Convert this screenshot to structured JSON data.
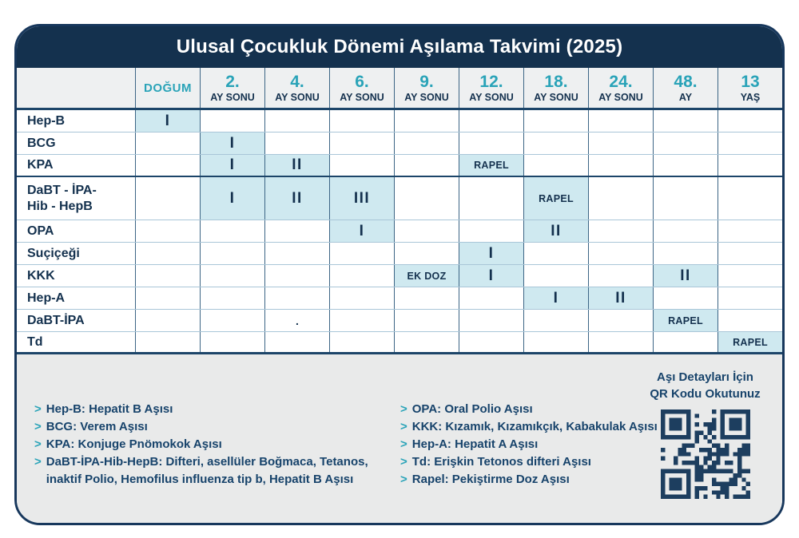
{
  "title": "Ulusal Çocukluk Dönemi Aşılama Takvimi (2025)",
  "colors": {
    "navy": "#14314e",
    "teal": "#29a3b8",
    "highlight_cell": "#cfe9f0",
    "header_bg": "#eef0f1",
    "footer_bg": "#e9eaea"
  },
  "chart_data": {
    "type": "table",
    "title": "Ulusal Çocukluk Dönemi Aşılama Takvimi (2025)",
    "columns": [
      {
        "num": "DOĞUM",
        "sub": ""
      },
      {
        "num": "2.",
        "sub": "AY SONU"
      },
      {
        "num": "4.",
        "sub": "AY SONU"
      },
      {
        "num": "6.",
        "sub": "AY SONU"
      },
      {
        "num": "9.",
        "sub": "AY SONU"
      },
      {
        "num": "12.",
        "sub": "AY SONU"
      },
      {
        "num": "18.",
        "sub": "AY SONU"
      },
      {
        "num": "24.",
        "sub": "AY SONU"
      },
      {
        "num": "48.",
        "sub": "AY"
      },
      {
        "num": "13",
        "sub": "YAŞ"
      }
    ],
    "rows": [
      {
        "label": "Hep-B",
        "label2": "",
        "tall": false,
        "thickBottom": false,
        "cells": [
          {
            "t": "I",
            "hl": true
          },
          null,
          null,
          null,
          null,
          null,
          null,
          null,
          null,
          null
        ]
      },
      {
        "label": "BCG",
        "label2": "",
        "tall": false,
        "thickBottom": false,
        "cells": [
          null,
          {
            "t": "I",
            "hl": true
          },
          null,
          null,
          null,
          null,
          null,
          null,
          null,
          null
        ]
      },
      {
        "label": "KPA",
        "label2": "",
        "tall": false,
        "thickBottom": true,
        "cells": [
          null,
          {
            "t": "I",
            "hl": true
          },
          {
            "t": "II",
            "hl": true
          },
          null,
          null,
          {
            "t": "RAPEL",
            "hl": true
          },
          null,
          null,
          null,
          null
        ]
      },
      {
        "label": "DaBT - İPA-",
        "label2": "Hib - HepB",
        "tall": true,
        "thickBottom": false,
        "cells": [
          null,
          {
            "t": "I",
            "hl": true
          },
          {
            "t": "II",
            "hl": true
          },
          {
            "t": "III",
            "hl": true
          },
          null,
          null,
          {
            "t": "RAPEL",
            "hl": true
          },
          null,
          null,
          null
        ]
      },
      {
        "label": "OPA",
        "label2": "",
        "tall": false,
        "thickBottom": false,
        "cells": [
          null,
          null,
          null,
          {
            "t": "I",
            "hl": true
          },
          null,
          null,
          {
            "t": "II",
            "hl": true
          },
          null,
          null,
          null
        ]
      },
      {
        "label": "Suçiçeği",
        "label2": "",
        "tall": false,
        "thickBottom": false,
        "cells": [
          null,
          null,
          null,
          null,
          null,
          {
            "t": "I",
            "hl": true
          },
          null,
          null,
          null,
          null
        ]
      },
      {
        "label": "KKK",
        "label2": "",
        "tall": false,
        "thickBottom": false,
        "cells": [
          null,
          null,
          null,
          null,
          {
            "t": "EK DOZ",
            "hl": true
          },
          {
            "t": "I",
            "hl": true
          },
          null,
          null,
          {
            "t": "II",
            "hl": true
          },
          null
        ]
      },
      {
        "label": "Hep-A",
        "label2": "",
        "tall": false,
        "thickBottom": false,
        "cells": [
          null,
          null,
          null,
          null,
          null,
          null,
          {
            "t": "I",
            "hl": true
          },
          {
            "t": "II",
            "hl": true
          },
          null,
          null
        ]
      },
      {
        "label": "DaBT-İPA",
        "label2": "",
        "tall": false,
        "thickBottom": false,
        "cells": [
          null,
          null,
          {
            "t": ".",
            "hl": false
          },
          null,
          null,
          null,
          null,
          null,
          {
            "t": "RAPEL",
            "hl": true
          },
          null
        ]
      },
      {
        "label": "Td",
        "label2": "",
        "tall": false,
        "thickBottom": false,
        "cells": [
          null,
          null,
          null,
          null,
          null,
          null,
          null,
          null,
          null,
          {
            "t": "RAPEL",
            "hl": true
          }
        ]
      }
    ]
  },
  "legend": {
    "bullet": ">",
    "left": [
      "Hep-B: Hepatit B Aşısı",
      "BCG: Verem Aşısı",
      "KPA: Konjuge Pnömokok Aşısı",
      "DaBT-İPA-Hib-HepB: Difteri, asellüler Boğmaca, Tetanos,\ninaktif Polio, Hemofilus influenza tip b, Hepatit B Aşısı"
    ],
    "right": [
      "OPA: Oral Polio Aşısı",
      "KKK: Kızamık, Kızamıkçık, Kabakulak Aşısı",
      "Hep-A: Hepatit A Aşısı",
      "Td: Erişkin Tetonos difteri Aşısı",
      "Rapel: Pekiştirme Doz Aşısı"
    ]
  },
  "qr": {
    "label1": "Aşı Detayları İçin",
    "label2": "QR Kodu Okutunuz"
  }
}
